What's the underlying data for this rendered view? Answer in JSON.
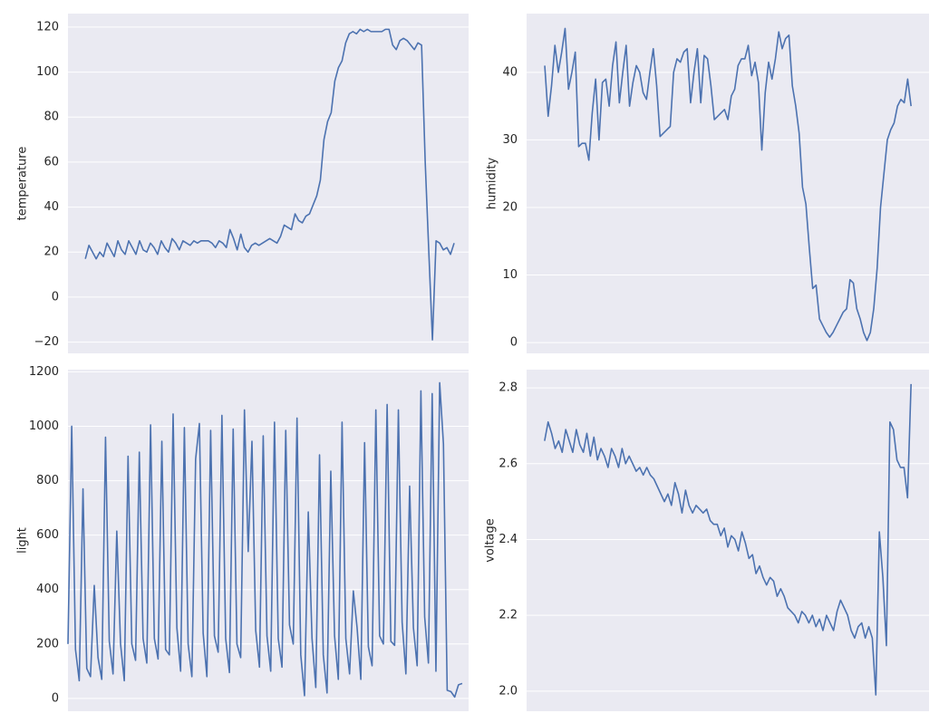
{
  "chart_data": [
    {
      "type": "line",
      "ylabel": "temperature",
      "color": "#4c72b0",
      "grid": true,
      "xlim": [
        -4.8,
        106
      ],
      "ylim": [
        -25,
        126
      ],
      "yticks": [
        {
          "value": -20,
          "label": "−20"
        },
        0,
        20,
        40,
        60,
        80,
        100,
        120
      ],
      "values": [
        17,
        23,
        20,
        17,
        20,
        18,
        24,
        21,
        18,
        25,
        21,
        19,
        25,
        22,
        19,
        25,
        21,
        20,
        24,
        22,
        19,
        25,
        22,
        20,
        26,
        24,
        21,
        25,
        24,
        23,
        25,
        24,
        25,
        25,
        25,
        24,
        22,
        25,
        24,
        22,
        30,
        26,
        21,
        28,
        22,
        20,
        23,
        24,
        23,
        24,
        25,
        26,
        25,
        24,
        27,
        32,
        31,
        30,
        37,
        34,
        33,
        36,
        37,
        41,
        45,
        52,
        70,
        78,
        82,
        96,
        102,
        105,
        113,
        117,
        118,
        117,
        119,
        118,
        119,
        118,
        118,
        118,
        118,
        119,
        119,
        112,
        110,
        114,
        115,
        114,
        112,
        110,
        113,
        112,
        60,
        20,
        -19,
        25,
        24,
        21,
        22,
        19,
        24
      ]
    },
    {
      "type": "line",
      "ylabel": "humidity",
      "color": "#4c72b0",
      "grid": true,
      "xlim": [
        -5.35,
        113.3
      ],
      "ylim": [
        -1.6,
        48.7
      ],
      "yticks": [
        0,
        10,
        20,
        30,
        40
      ],
      "values": [
        41,
        33.5,
        38,
        44,
        40,
        43,
        46.5,
        37.5,
        40,
        43,
        29,
        29.5,
        29.5,
        27,
        34,
        39,
        30,
        38.5,
        39,
        35,
        41,
        44.5,
        35.5,
        40,
        44,
        35,
        38.5,
        41,
        40,
        37,
        36,
        40,
        43.5,
        38,
        30.5,
        31,
        31.5,
        32,
        40,
        42,
        41.5,
        43,
        43.5,
        35.5,
        40,
        43.5,
        35.5,
        42.5,
        42,
        38,
        33,
        33.5,
        34,
        34.5,
        33,
        36.5,
        37.5,
        41,
        42,
        42,
        44,
        39.5,
        41.5,
        38.5,
        28.5,
        37,
        41.5,
        39,
        42,
        46,
        43.5,
        45,
        45.5,
        38,
        35,
        31,
        23,
        20.5,
        14,
        8,
        8.5,
        3.5,
        2.5,
        1.5,
        0.8,
        1.5,
        2.5,
        3.5,
        4.5,
        5,
        9.3,
        8.8,
        5,
        3.5,
        1.5,
        0.3,
        1.5,
        5,
        11,
        20,
        25,
        30,
        31.5,
        32.5,
        35,
        36,
        35.5,
        39,
        35
      ]
    },
    {
      "type": "line",
      "ylabel": "light",
      "color": "#4c72b0",
      "grid": true,
      "xlim": [
        0,
        106.7
      ],
      "ylim": [
        -47,
        1208
      ],
      "yticks": [
        0,
        200,
        400,
        600,
        800,
        1000,
        1200
      ],
      "values": [
        200,
        1000,
        180,
        65,
        770,
        110,
        80,
        415,
        150,
        70,
        960,
        210,
        90,
        615,
        200,
        65,
        890,
        200,
        140,
        905,
        220,
        130,
        1005,
        220,
        145,
        945,
        180,
        160,
        1045,
        260,
        100,
        995,
        200,
        80,
        880,
        1010,
        240,
        80,
        985,
        230,
        170,
        1040,
        220,
        95,
        990,
        200,
        150,
        1060,
        540,
        945,
        250,
        115,
        965,
        230,
        100,
        1015,
        220,
        115,
        985,
        270,
        200,
        1030,
        160,
        10,
        685,
        220,
        40,
        895,
        160,
        20,
        835,
        230,
        70,
        1015,
        220,
        90,
        395,
        260,
        70,
        940,
        190,
        120,
        1060,
        230,
        200,
        1080,
        210,
        195,
        1060,
        280,
        90,
        780,
        260,
        120,
        1130,
        300,
        130,
        1120,
        100,
        1160,
        935,
        30,
        25,
        5,
        50,
        55
      ]
    },
    {
      "type": "line",
      "ylabel": "voltage",
      "color": "#4c72b0",
      "grid": true,
      "xlim": [
        -5.1,
        109.1
      ],
      "ylim": [
        1.947,
        2.848
      ],
      "yticks": [
        {
          "value": 2,
          "label": "2.0"
        },
        2.2,
        2.4,
        2.6,
        2.8
      ],
      "values": [
        2.66,
        2.71,
        2.68,
        2.64,
        2.66,
        2.63,
        2.69,
        2.66,
        2.63,
        2.69,
        2.65,
        2.63,
        2.68,
        2.62,
        2.67,
        2.61,
        2.64,
        2.62,
        2.59,
        2.64,
        2.62,
        2.59,
        2.64,
        2.6,
        2.62,
        2.6,
        2.58,
        2.59,
        2.57,
        2.59,
        2.57,
        2.56,
        2.54,
        2.52,
        2.5,
        2.52,
        2.49,
        2.55,
        2.52,
        2.47,
        2.53,
        2.49,
        2.47,
        2.49,
        2.48,
        2.47,
        2.48,
        2.45,
        2.44,
        2.44,
        2.41,
        2.43,
        2.38,
        2.41,
        2.4,
        2.37,
        2.42,
        2.39,
        2.35,
        2.36,
        2.31,
        2.33,
        2.3,
        2.28,
        2.3,
        2.29,
        2.25,
        2.27,
        2.25,
        2.22,
        2.21,
        2.2,
        2.18,
        2.21,
        2.2,
        2.18,
        2.2,
        2.17,
        2.19,
        2.16,
        2.2,
        2.18,
        2.16,
        2.21,
        2.24,
        2.22,
        2.2,
        2.16,
        2.14,
        2.17,
        2.18,
        2.14,
        2.17,
        2.14,
        1.99,
        2.42,
        2.3,
        2.12,
        2.71,
        2.69,
        2.61,
        2.59,
        2.59,
        2.51,
        2.81
      ]
    }
  ]
}
